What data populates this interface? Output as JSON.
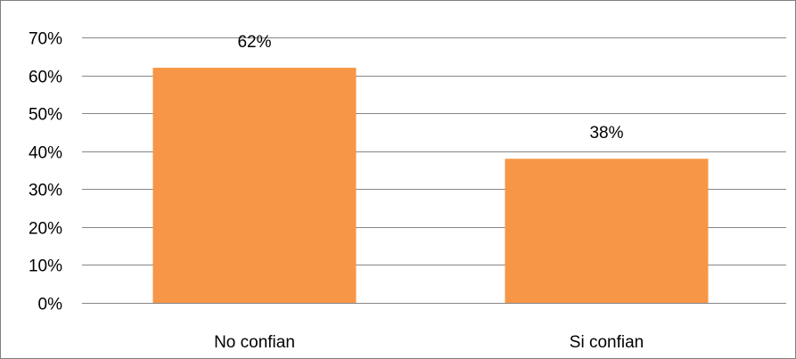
{
  "chart_data": {
    "type": "bar",
    "title": "",
    "xlabel": "",
    "ylabel": "",
    "categories": [
      "No confian",
      "Si confian"
    ],
    "values": [
      62,
      38
    ],
    "data_labels": [
      "62%",
      "38%"
    ],
    "ylim": [
      0,
      70
    ],
    "yticks": [
      0,
      10,
      20,
      30,
      40,
      50,
      60,
      70
    ],
    "ytick_labels": [
      "0%",
      "10%",
      "20%",
      "30%",
      "40%",
      "50%",
      "60%",
      "70%"
    ],
    "grid": true,
    "legend": "none",
    "colors": {
      "bar": "#f79646",
      "grid": "#868686",
      "frame": "#7f7f7f"
    }
  }
}
